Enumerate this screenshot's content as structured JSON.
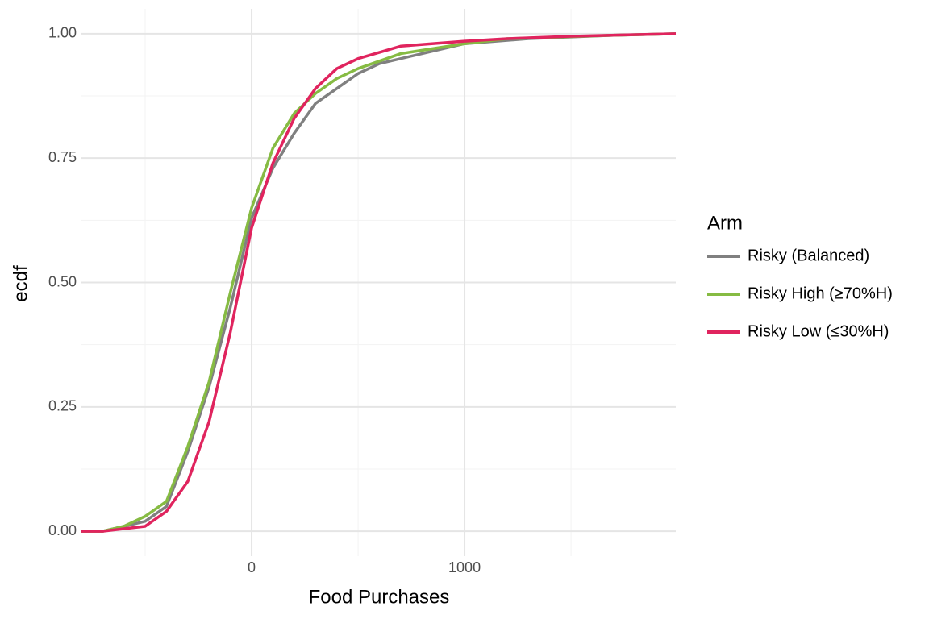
{
  "chart_data": {
    "type": "line",
    "x_label": "Food Purchases",
    "y_label": "ecdf",
    "legend_title": "Arm",
    "legend_position": "right",
    "grid": true,
    "xlim": [
      -803,
      1992
    ],
    "ylim": [
      -0.05,
      1.05
    ],
    "xticks": [
      0,
      1000
    ],
    "yticks": [
      {
        "value": 0,
        "label": "0.00"
      },
      {
        "value": 0.25,
        "label": "0.25"
      },
      {
        "value": 0.5,
        "label": "0.50"
      },
      {
        "value": 0.75,
        "label": "0.75"
      },
      {
        "value": 1,
        "label": "1.00"
      }
    ],
    "x_minor_ticks": [
      -500,
      500,
      1500
    ],
    "y_minor_ticks": [
      0.125,
      0.375,
      0.625,
      0.875
    ],
    "series": [
      {
        "name": "Risky (Balanced)",
        "color": "#808080",
        "x": [
          -803,
          -700,
          -500,
          -400,
          -300,
          -200,
          -100,
          0,
          100,
          200,
          300,
          400,
          500,
          600,
          800,
          1000,
          1300,
          1700,
          1992
        ],
        "values": [
          0,
          0,
          0.02,
          0.05,
          0.16,
          0.29,
          0.45,
          0.63,
          0.73,
          0.8,
          0.86,
          0.89,
          0.92,
          0.94,
          0.96,
          0.98,
          0.99,
          0.997,
          1
        ]
      },
      {
        "name": "Risky High (≥70%H)",
        "color": "#86bb43",
        "x": [
          -803,
          -700,
          -600,
          -500,
          -400,
          -300,
          -200,
          -100,
          0,
          100,
          200,
          300,
          400,
          500,
          700,
          1000,
          1200,
          1700,
          1992
        ],
        "values": [
          0,
          0,
          0.01,
          0.03,
          0.06,
          0.17,
          0.3,
          0.48,
          0.65,
          0.77,
          0.84,
          0.88,
          0.91,
          0.93,
          0.96,
          0.98,
          0.99,
          0.997,
          1
        ]
      },
      {
        "name": "Risky Low (≤30%H)",
        "color": "#e0245e",
        "x": [
          -803,
          -700,
          -600,
          -500,
          -400,
          -300,
          -200,
          -100,
          0,
          100,
          200,
          300,
          400,
          500,
          700,
          1000,
          1200,
          1500,
          1992
        ],
        "values": [
          0,
          0,
          0.005,
          0.01,
          0.04,
          0.1,
          0.22,
          0.4,
          0.61,
          0.74,
          0.83,
          0.89,
          0.93,
          0.95,
          0.975,
          0.985,
          0.99,
          0.995,
          1
        ]
      }
    ]
  }
}
